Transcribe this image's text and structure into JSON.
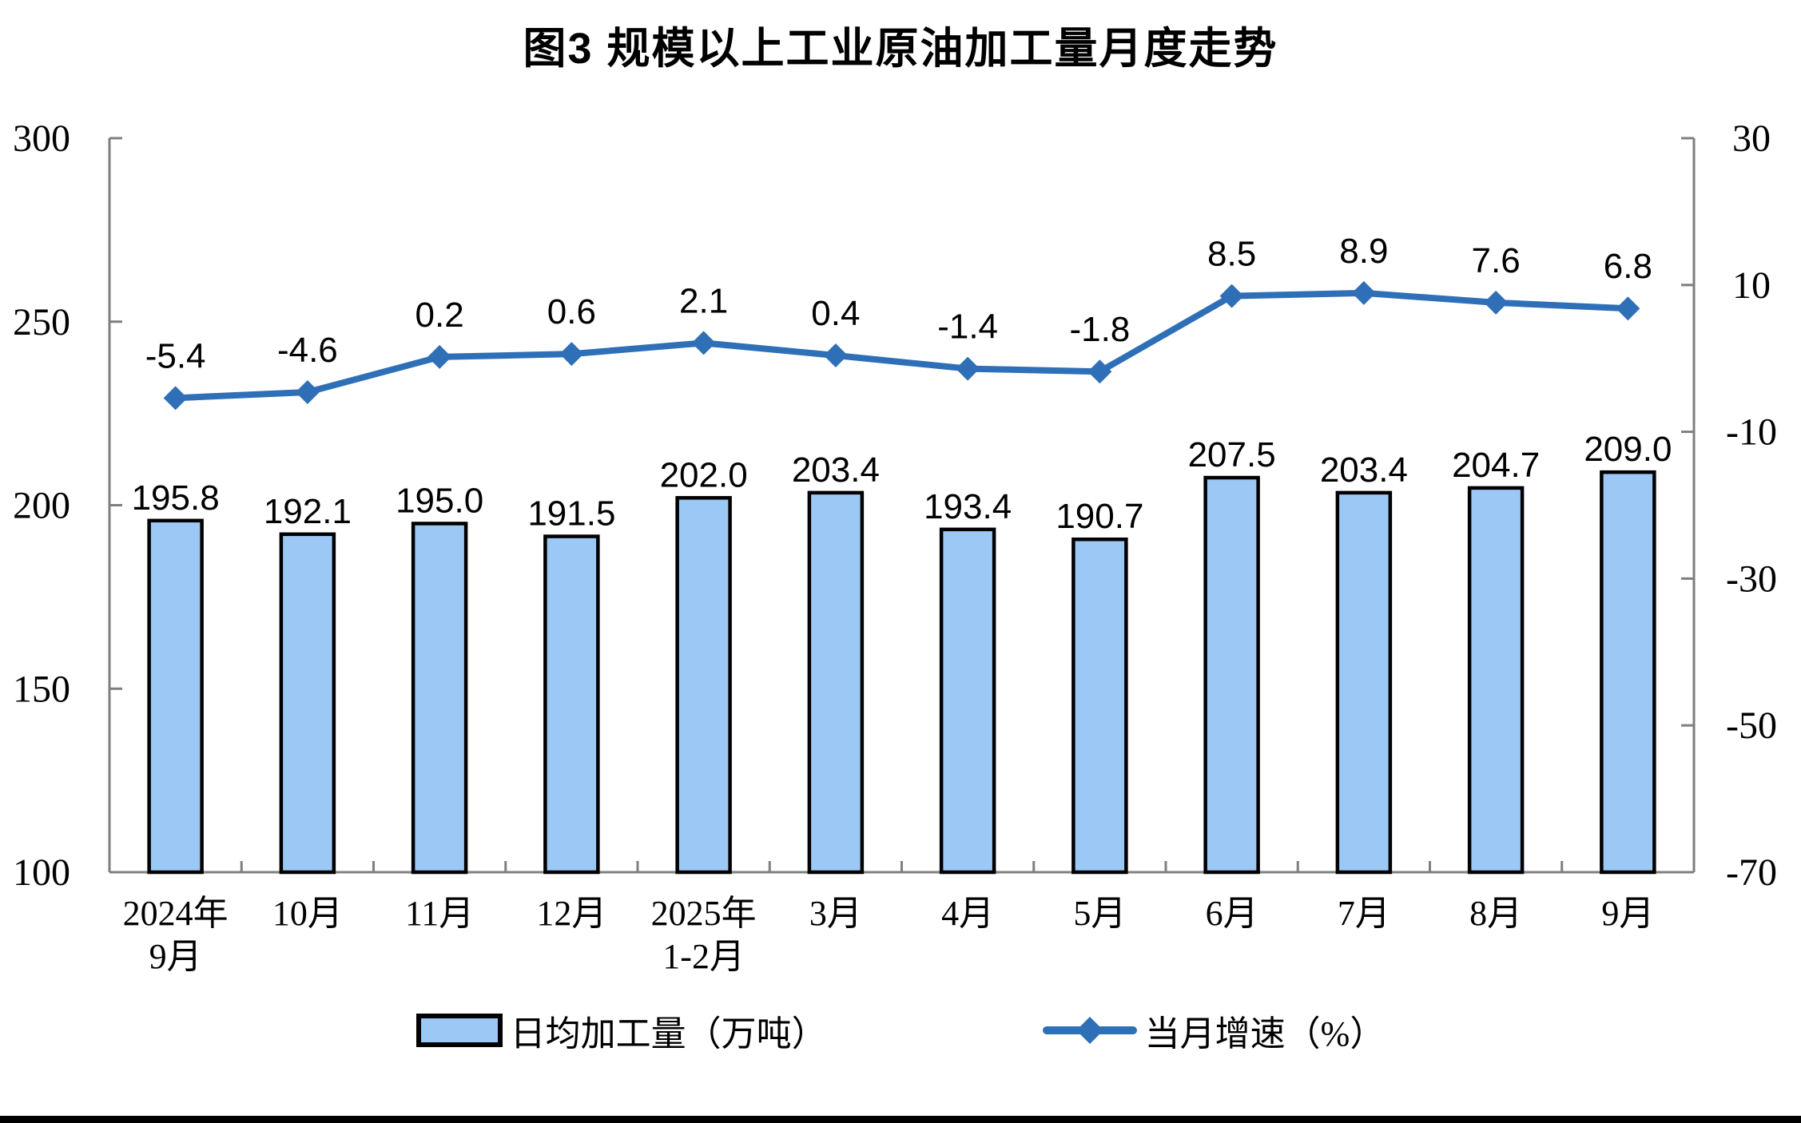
{
  "title": "图3 规模以上工业原油加工量月度走势",
  "legend": {
    "bar_label": "日均加工量（万吨）",
    "line_label": "当月增速（%）"
  },
  "colors": {
    "bar_fill": "#9CC8F5",
    "bar_border": "#000000",
    "line": "#2E6FB7",
    "axis": "#7F7F7F",
    "text": "#000000"
  },
  "chart_data": {
    "type": "bar",
    "subtype": "bar-line-combo",
    "title": "图3 规模以上工业原油加工量月度走势",
    "categories": [
      [
        "2024年",
        "9月"
      ],
      [
        "10月"
      ],
      [
        "11月"
      ],
      [
        "12月"
      ],
      [
        "2025年",
        "1-2月"
      ],
      [
        "3月"
      ],
      [
        "4月"
      ],
      [
        "5月"
      ],
      [
        "6月"
      ],
      [
        "7月"
      ],
      [
        "8月"
      ],
      [
        "9月"
      ]
    ],
    "series": [
      {
        "name": "日均加工量（万吨）",
        "type": "bar",
        "axis": "left",
        "values": [
          195.8,
          192.1,
          195.0,
          191.5,
          202.0,
          203.4,
          193.4,
          190.7,
          207.5,
          203.4,
          204.7,
          209.0
        ]
      },
      {
        "name": "当月增速（%）",
        "type": "line",
        "axis": "right",
        "values": [
          -5.4,
          -4.6,
          0.2,
          0.6,
          2.1,
          0.4,
          -1.4,
          -1.8,
          8.5,
          8.9,
          7.6,
          6.8
        ]
      }
    ],
    "left_axis": {
      "min": 100,
      "max": 300,
      "ticks": [
        100,
        150,
        200,
        250,
        300
      ]
    },
    "right_axis": {
      "min": -70,
      "max": 30,
      "ticks": [
        -70,
        -50,
        -30,
        -10,
        10,
        30
      ]
    },
    "grid": false,
    "legend_position": "bottom"
  }
}
